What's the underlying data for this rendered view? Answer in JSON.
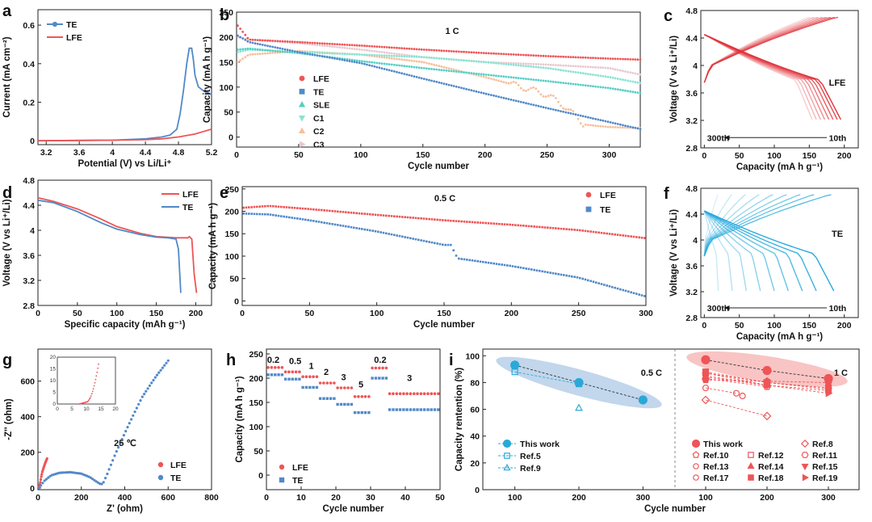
{
  "colors": {
    "red": "#ee5557",
    "blue": "#5189c8",
    "teal": "#56cfc5",
    "mint": "#8be3d3",
    "peach": "#f7bf9c",
    "pink": "#e8c9cf"
  },
  "chart_data": [
    {
      "id": "a",
      "type": "line",
      "label": "a",
      "xlabel": "Potential (V) vs Li/Li⁺",
      "ylabel": "Current (mA cm⁻²)",
      "xlim": [
        3.1,
        5.2
      ],
      "ylim": [
        -0.02,
        0.68
      ],
      "xticks": [
        3.2,
        3.6,
        4.0,
        4.4,
        4.8,
        5.2
      ],
      "yticks": [
        0.0,
        0.2,
        0.4,
        0.6
      ],
      "series": [
        {
          "name": "TE",
          "color": "#5189c8",
          "x": [
            3.1,
            4.0,
            4.4,
            4.6,
            4.7,
            4.78,
            4.82,
            4.86,
            4.9,
            4.93,
            4.96,
            4.98,
            5.0,
            5.04,
            5.1,
            5.2
          ],
          "y": [
            0,
            0.003,
            0.01,
            0.02,
            0.03,
            0.06,
            0.14,
            0.26,
            0.4,
            0.48,
            0.48,
            0.42,
            0.34,
            0.28,
            0.26,
            0.24
          ]
        },
        {
          "name": "LFE",
          "color": "#ee5557",
          "x": [
            3.1,
            4.0,
            4.4,
            4.6,
            4.8,
            5.0,
            5.1,
            5.2
          ],
          "y": [
            0,
            0.003,
            0.006,
            0.01,
            0.02,
            0.035,
            0.048,
            0.06
          ]
        }
      ]
    },
    {
      "id": "b",
      "type": "scatter",
      "label": "b",
      "title": "1 C",
      "xlabel": "Cycle number",
      "ylabel": "Capacity (mA h g⁻¹)",
      "xlim": [
        0,
        325
      ],
      "ylim": [
        -20,
        250
      ],
      "xticks": [
        0,
        50,
        100,
        150,
        200,
        250,
        300
      ],
      "yticks": [
        0,
        50,
        100,
        150,
        200,
        250
      ],
      "series": [
        {
          "name": "LFE",
          "color": "#ee5557",
          "x": [
            1,
            10,
            50,
            100,
            150,
            200,
            250,
            300,
            325
          ],
          "y": [
            223,
            195,
            190,
            183,
            175,
            168,
            162,
            157,
            155
          ]
        },
        {
          "name": "TE",
          "color": "#5189c8",
          "x": [
            1,
            10,
            50,
            100,
            150,
            200,
            250,
            300,
            325
          ],
          "y": [
            203,
            190,
            170,
            148,
            117,
            87,
            58,
            30,
            16
          ]
        },
        {
          "name": "SLE",
          "color": "#56cfc5",
          "x": [
            1,
            10,
            50,
            100,
            150,
            200,
            250,
            300,
            325
          ],
          "y": [
            175,
            177,
            168,
            152,
            138,
            125,
            112,
            98,
            88
          ]
        },
        {
          "name": "C1",
          "color": "#8be3d3",
          "x": [
            1,
            10,
            50,
            100,
            150,
            200,
            250,
            300,
            325
          ],
          "y": [
            170,
            175,
            170,
            165,
            160,
            150,
            138,
            120,
            108
          ]
        },
        {
          "name": "C2",
          "color": "#f7bf9c",
          "x": [
            1,
            10,
            50,
            100,
            150,
            200,
            230,
            250,
            265,
            280,
            300,
            325
          ],
          "y": [
            150,
            165,
            172,
            165,
            150,
            120,
            100,
            85,
            60,
            25,
            20,
            18
          ]
        },
        {
          "name": "C3",
          "color": "#e8c9cf",
          "x": [
            1,
            10,
            50,
            100,
            150,
            200,
            250,
            300,
            325
          ],
          "y": [
            200,
            195,
            188,
            175,
            160,
            150,
            145,
            138,
            125
          ]
        }
      ]
    },
    {
      "id": "c",
      "type": "line",
      "label": "c",
      "annotation": "LFE",
      "xlabel": "Capacity (mA h g⁻¹)",
      "ylabel": "Voltage (V vs Li⁺/Li)",
      "xlim": [
        -5,
        220
      ],
      "ylim": [
        2.8,
        4.8
      ],
      "xticks": [
        0,
        50,
        100,
        150,
        200
      ],
      "yticks": [
        2.8,
        3.2,
        3.6,
        4.0,
        4.4,
        4.8
      ],
      "cycle_labels": [
        "300th",
        "10th"
      ],
      "curve_end_capacities": [
        195,
        190,
        184,
        178,
        172,
        166,
        160,
        154
      ]
    },
    {
      "id": "d",
      "type": "line",
      "label": "d",
      "xlabel": "Specific capacity (mAh g⁻¹)",
      "ylabel": "Voltage (V vs Li⁺/Li)",
      "xlim": [
        0,
        220
      ],
      "ylim": [
        2.8,
        4.8
      ],
      "xticks": [
        0,
        50,
        100,
        150,
        200
      ],
      "yticks": [
        2.8,
        3.2,
        3.6,
        4.0,
        4.4,
        4.8
      ],
      "series": [
        {
          "name": "LFE",
          "color": "#ee5557",
          "x": [
            0,
            20,
            50,
            80,
            100,
            130,
            150,
            175,
            190,
            192,
            195,
            198,
            201
          ],
          "y": [
            4.52,
            4.46,
            4.34,
            4.18,
            4.06,
            3.95,
            3.9,
            3.88,
            3.88,
            3.9,
            3.86,
            3.3,
            3.0
          ]
        },
        {
          "name": "TE",
          "color": "#5189c8",
          "x": [
            0,
            20,
            50,
            80,
            100,
            130,
            150,
            165,
            175,
            178,
            181
          ],
          "y": [
            4.48,
            4.44,
            4.3,
            4.12,
            4.02,
            3.93,
            3.89,
            3.88,
            3.86,
            3.7,
            3.0
          ]
        }
      ]
    },
    {
      "id": "e",
      "type": "scatter",
      "label": "e",
      "title": "0.5 C",
      "xlabel": "Cycle number",
      "ylabel": "Capacity (mA h g⁻¹)",
      "xlim": [
        0,
        300
      ],
      "ylim": [
        -10,
        255
      ],
      "xticks": [
        0,
        50,
        100,
        150,
        200,
        250,
        300
      ],
      "yticks": [
        0,
        50,
        100,
        150,
        200,
        250
      ],
      "series": [
        {
          "name": "LFE",
          "color": "#ee5557",
          "x": [
            1,
            20,
            50,
            100,
            150,
            200,
            250,
            300
          ],
          "y": [
            208,
            212,
            205,
            192,
            180,
            170,
            158,
            140
          ]
        },
        {
          "name": "TE",
          "color": "#5189c8",
          "x": [
            1,
            20,
            50,
            100,
            150,
            155,
            160,
            200,
            250,
            300
          ],
          "y": [
            195,
            193,
            180,
            155,
            125,
            125,
            95,
            78,
            52,
            10
          ]
        }
      ]
    },
    {
      "id": "f",
      "type": "line",
      "label": "f",
      "annotation": "TE",
      "xlabel": "Capacity (mA h g⁻¹)",
      "ylabel": "Voltage (V vs Li⁺/Li)",
      "xlim": [
        -5,
        220
      ],
      "ylim": [
        2.8,
        4.8
      ],
      "xticks": [
        0,
        50,
        100,
        150,
        200
      ],
      "yticks": [
        2.8,
        3.2,
        3.6,
        4.0,
        4.4,
        4.8
      ],
      "cycle_labels": [
        "300th",
        "10th"
      ],
      "curve_end_capacities": [
        185,
        160,
        140,
        120,
        100,
        80,
        60,
        40,
        20
      ]
    },
    {
      "id": "g",
      "type": "scatter",
      "label": "g",
      "annotation": "25 ℃",
      "xlabel": "Z' (ohm)",
      "ylabel": "-Z'' (ohm)",
      "xlim": [
        0,
        800
      ],
      "ylim": [
        -10,
        780
      ],
      "xticks": [
        0,
        200,
        400,
        600,
        800
      ],
      "yticks": [
        0,
        200,
        400,
        600
      ],
      "series": [
        {
          "name": "LFE",
          "color": "#ee5557",
          "x": [
            2,
            5,
            10,
            15,
            20,
            28,
            35,
            42
          ],
          "y": [
            0,
            5,
            25,
            60,
            90,
            120,
            145,
            165
          ]
        },
        {
          "name": "TE",
          "color": "#5189c8",
          "x": [
            5,
            30,
            60,
            100,
            150,
            200,
            240,
            270,
            290,
            300,
            320,
            360,
            420,
            480,
            540,
            600
          ],
          "y": [
            0,
            40,
            70,
            85,
            88,
            80,
            60,
            35,
            20,
            25,
            80,
            200,
            360,
            510,
            620,
            715
          ]
        }
      ],
      "inset": {
        "xlim": [
          0,
          20
        ],
        "ylim": [
          0,
          20
        ],
        "xticks": [
          0,
          5,
          10,
          15,
          20
        ],
        "yticks": [
          0,
          5,
          10,
          15,
          20
        ],
        "x": [
          7.5,
          9,
          10.5,
          11.5,
          12.3,
          13,
          13.6,
          14.2
        ],
        "y": [
          0,
          0.5,
          1,
          3,
          6,
          9.5,
          13,
          17
        ]
      }
    },
    {
      "id": "h",
      "type": "scatter",
      "label": "h",
      "xlabel": "Cycle number",
      "ylabel": "Capacity (mA h g⁻¹)",
      "xlim": [
        0,
        50
      ],
      "ylim": [
        -30,
        260
      ],
      "xticks": [
        0,
        10,
        20,
        30,
        40,
        50
      ],
      "yticks": [
        0,
        50,
        100,
        150,
        200,
        250
      ],
      "rate_labels": [
        "0.2",
        "0.5",
        "1",
        "2",
        "3",
        "5",
        "0.2",
        "3"
      ],
      "series": [
        {
          "name": "LFE",
          "color": "#ee5557",
          "segments": [
            [
              0,
              5,
              222
            ],
            [
              5,
              10,
              213
            ],
            [
              10,
              15,
              203
            ],
            [
              15,
              20,
              190
            ],
            [
              20,
              25,
              180
            ],
            [
              25,
              30,
              162
            ],
            [
              30,
              35,
              221
            ],
            [
              35,
              50,
              168
            ]
          ]
        },
        {
          "name": "TE",
          "color": "#5189c8",
          "segments": [
            [
              0,
              5,
              207
            ],
            [
              5,
              10,
              198
            ],
            [
              10,
              15,
              181
            ],
            [
              15,
              20,
              158
            ],
            [
              20,
              25,
              146
            ],
            [
              25,
              30,
              129
            ],
            [
              30,
              35,
              200
            ],
            [
              35,
              50,
              135
            ]
          ]
        }
      ]
    },
    {
      "id": "i",
      "type": "scatter",
      "label": "i",
      "xlabel": "Cycle number",
      "ylabel": "Capacity rentention (%)",
      "panels": [
        {
          "rate": "0.5 C",
          "xlim": [
            50,
            350
          ],
          "ylim": [
            0,
            105
          ],
          "xticks": [
            100,
            200,
            300
          ],
          "yticks": [
            0,
            20,
            40,
            60,
            80,
            100
          ],
          "series": [
            {
              "name": "This work",
              "x": [
                100,
                200,
                300
              ],
              "y": [
                93,
                80,
                67
              ]
            },
            {
              "name": "Ref.5",
              "x": [
                100,
                200
              ],
              "y": [
                88,
                79
              ]
            },
            {
              "name": "Ref.9",
              "x": [
                200
              ],
              "y": [
                61
              ]
            }
          ]
        },
        {
          "rate": "1 C",
          "xlim": [
            50,
            350
          ],
          "ylim": [
            0,
            105
          ],
          "xticks": [
            100,
            200,
            300
          ],
          "series": [
            {
              "name": "This work",
              "x": [
                100,
                200,
                300
              ],
              "y": [
                97,
                89,
                83
              ]
            },
            {
              "name": "Ref.8",
              "x": [
                100,
                200
              ],
              "y": [
                67,
                55
              ]
            },
            {
              "name": "Ref.10",
              "x": [
                100,
                200,
                300
              ],
              "y": [
                82,
                81,
                80
              ]
            },
            {
              "name": "Ref.11",
              "x": [
                100,
                200
              ],
              "y": [
                83,
                77
              ]
            },
            {
              "name": "Ref.12",
              "x": [
                100,
                200,
                300
              ],
              "y": [
                87,
                80,
                76
              ]
            },
            {
              "name": "Ref.13",
              "x": [
                100,
                150
              ],
              "y": [
                76,
                72
              ]
            },
            {
              "name": "Ref.14",
              "x": [
                100,
                200
              ],
              "y": [
                84,
                78
              ]
            },
            {
              "name": "Ref.15",
              "x": [
                100,
                200,
                300
              ],
              "y": [
                85,
                78,
                74
              ]
            },
            {
              "name": "Ref.17",
              "x": [
                160
              ],
              "y": [
                70
              ]
            },
            {
              "name": "Ref.18",
              "x": [
                100,
                200,
                300
              ],
              "y": [
                88,
                80,
                75
              ]
            },
            {
              "name": "Ref.19",
              "x": [
                100,
                200,
                300
              ],
              "y": [
                87,
                78,
                72
              ]
            }
          ]
        }
      ]
    }
  ]
}
